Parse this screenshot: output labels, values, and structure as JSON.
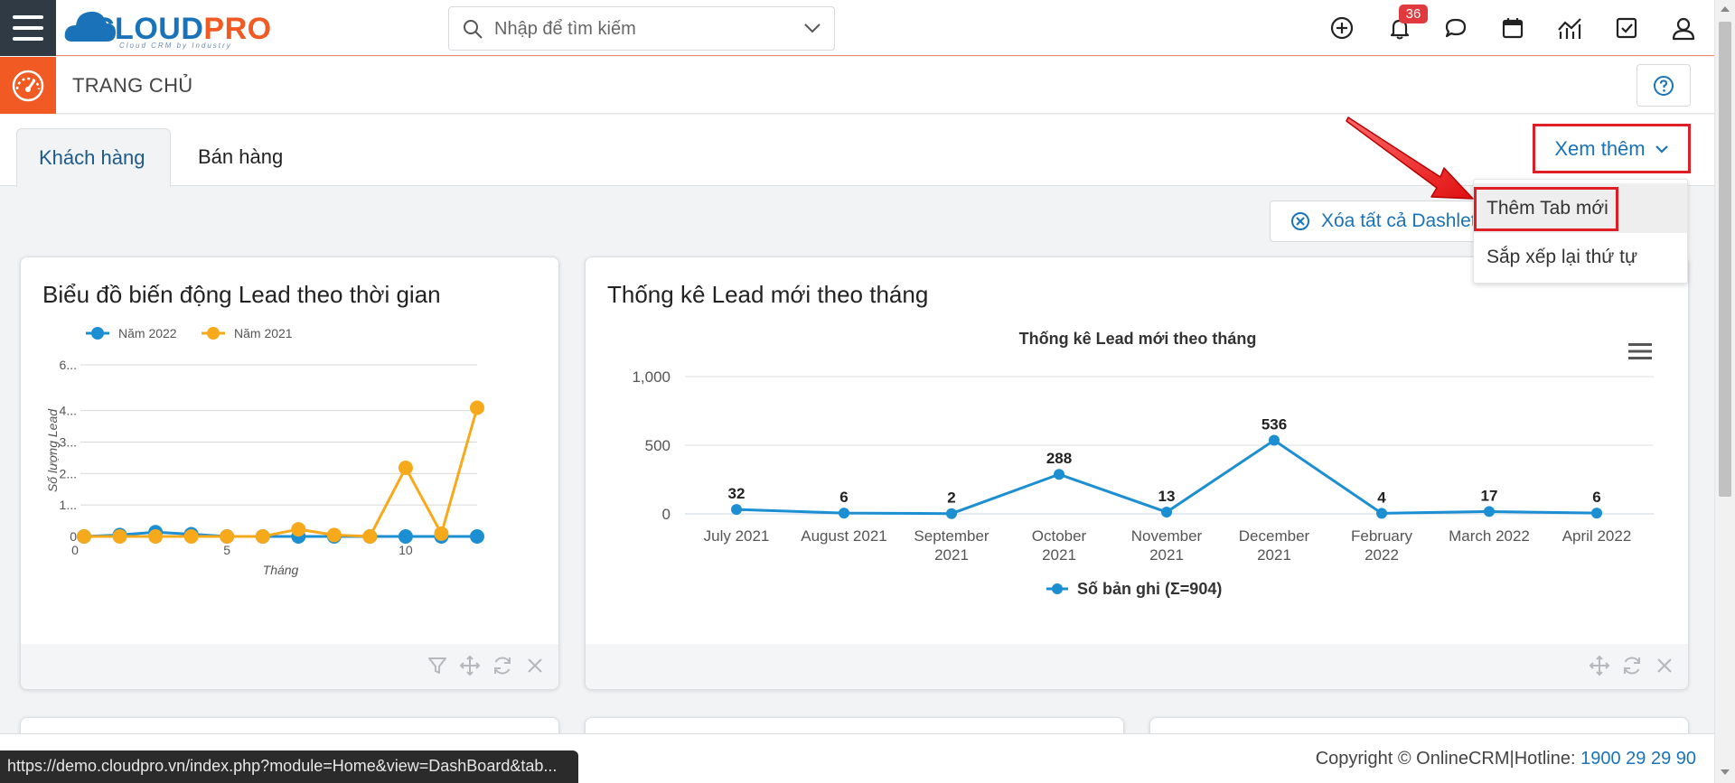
{
  "brand": {
    "logo_main": "CLOUD",
    "logo_accent": "PRO",
    "logo_tagline": "Cloud CRM by Industry"
  },
  "search": {
    "placeholder": "Nhập để tìm kiếm"
  },
  "header": {
    "notification_count": "36"
  },
  "page": {
    "title": "TRANG CHỦ"
  },
  "tabs": [
    {
      "label": "Khách hàng"
    },
    {
      "label": "Bán hàng"
    }
  ],
  "toolbar": {
    "more_label": "Xem thêm",
    "delete_all_label": "Xóa tất cả Dashlet"
  },
  "dropdown": {
    "items": [
      {
        "label": "Thêm Tab mới"
      },
      {
        "label": "Sắp xếp lại thứ tự"
      }
    ]
  },
  "dashlet1": {
    "title": "Biểu đồ biến động Lead theo thời gian",
    "chart_data": {
      "type": "line",
      "title": "",
      "xlabel": "Tháng",
      "ylabel": "Số lượng Lead",
      "x": [
        1,
        2,
        3,
        4,
        5,
        6,
        7,
        8,
        9,
        10,
        11,
        12
      ],
      "xticks": [
        "0",
        "5",
        "10"
      ],
      "yticks": [
        "0",
        "1...",
        "2...",
        "3...",
        "4...",
        "6..."
      ],
      "ylim": [
        0,
        6
      ],
      "series": [
        {
          "name": "Năm 2022",
          "color": "#1b8fd2",
          "values": [
            0,
            0.05,
            0.15,
            0.08,
            0,
            0,
            0,
            0,
            0,
            0,
            0,
            0
          ]
        },
        {
          "name": "Năm 2021",
          "color": "#f7a91c",
          "values": [
            0,
            0,
            0,
            0,
            0,
            0,
            0.25,
            0.05,
            0,
            2.4,
            0.1,
            4.5
          ]
        }
      ],
      "legend": "top-left",
      "grid": true
    }
  },
  "dashlet2": {
    "title": "Thống kê Lead mới theo tháng",
    "chart_data": {
      "type": "line",
      "title": "Thống kê Lead mới theo tháng",
      "categories": [
        "July 2021",
        "August 2021",
        "September 2021",
        "October 2021",
        "November 2021",
        "December 2021",
        "February 2022",
        "March 2022",
        "April 2022"
      ],
      "category_lines": [
        [
          "July 2021"
        ],
        [
          "August 2021"
        ],
        [
          "September",
          "2021"
        ],
        [
          "October",
          "2021"
        ],
        [
          "November",
          "2021"
        ],
        [
          "December",
          "2021"
        ],
        [
          "February",
          "2022"
        ],
        [
          "March 2022"
        ],
        [
          "April 2022"
        ]
      ],
      "yticks": [
        "0",
        "500",
        "1,000"
      ],
      "ylim": [
        0,
        1000
      ],
      "series": [
        {
          "name": "Số bản ghi (Σ=904)",
          "color": "#1b8fd2",
          "values": [
            32,
            6,
            2,
            288,
            13,
            536,
            4,
            17,
            6
          ]
        }
      ],
      "legend": "bottom",
      "grid": true
    }
  },
  "footer": {
    "copyright": "Copyright © OnlineCRM",
    "separator": "|",
    "hotline_label": "Hotline: ",
    "hotline_number": "1900 29 29 90"
  },
  "status_bar": {
    "url": "https://demo.cloudpro.vn/index.php?module=Home&view=DashBoard&tab..."
  },
  "colors": {
    "brand_blue": "#1a73b8",
    "brand_orange": "#f15a22",
    "highlight_red": "#e01e26"
  }
}
